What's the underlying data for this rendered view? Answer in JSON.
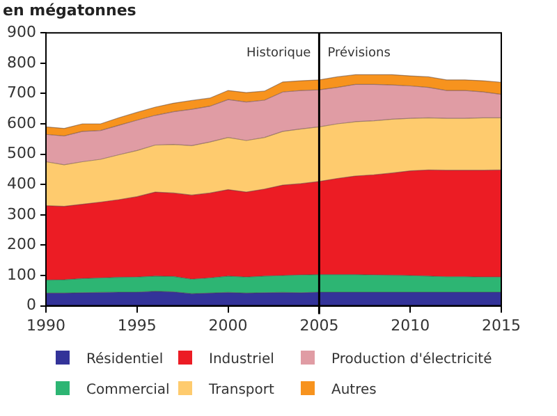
{
  "chart_data": {
    "type": "area",
    "stacked": true,
    "ylabel": "en mégatonnes",
    "x": [
      1990,
      1991,
      1992,
      1993,
      1994,
      1995,
      1996,
      1997,
      1998,
      1999,
      2000,
      2001,
      2002,
      2003,
      2004,
      2005,
      2006,
      2007,
      2008,
      2009,
      2010,
      2011,
      2012,
      2013,
      2014,
      2015
    ],
    "xlim": [
      1990,
      2015
    ],
    "xticks": [
      1990,
      1995,
      2000,
      2005,
      2010,
      2015
    ],
    "ylim": [
      0,
      900
    ],
    "yticks": [
      0,
      100,
      200,
      300,
      400,
      500,
      600,
      700,
      800,
      900
    ],
    "grid": false,
    "legend": "bottom",
    "ref_lines": [
      {
        "axis": "x",
        "value": 2005,
        "color": "#000000"
      }
    ],
    "annotations": [
      "Historique",
      "Prévisions"
    ],
    "series": [
      {
        "name": "Résidentiel",
        "color": "#333399",
        "values": [
          42,
          42,
          43,
          44,
          45,
          45,
          48,
          46,
          40,
          42,
          44,
          42,
          43,
          44,
          43,
          45,
          45,
          45,
          45,
          45,
          45,
          45,
          45,
          45,
          45,
          45
        ]
      },
      {
        "name": "Commercial",
        "color": "#2db573",
        "values": [
          43,
          44,
          47,
          48,
          49,
          50,
          50,
          51,
          48,
          50,
          54,
          53,
          55,
          56,
          59,
          58,
          58,
          58,
          57,
          56,
          55,
          53,
          51,
          51,
          50,
          50
        ]
      },
      {
        "name": "Industriel",
        "color": "#ec1c24",
        "values": [
          245,
          242,
          245,
          250,
          256,
          265,
          277,
          275,
          277,
          280,
          285,
          280,
          287,
          298,
          301,
          307,
          317,
          325,
          330,
          337,
          345,
          350,
          351,
          351,
          352,
          353
        ]
      },
      {
        "name": "Transport",
        "color": "#fecb6e",
        "values": [
          145,
          137,
          140,
          141,
          148,
          152,
          155,
          160,
          163,
          168,
          172,
          170,
          170,
          177,
          180,
          180,
          180,
          179,
          178,
          177,
          173,
          172,
          171,
          171,
          173,
          172
        ]
      },
      {
        "name": "Production d'électricité",
        "color": "#e09ca4",
        "values": [
          90,
          95,
          100,
          95,
          97,
          100,
          98,
          108,
          120,
          118,
          125,
          127,
          123,
          130,
          127,
          122,
          120,
          123,
          120,
          113,
          107,
          100,
          92,
          92,
          85,
          77
        ]
      },
      {
        "name": "Autres",
        "color": "#f7931e",
        "values": [
          25,
          25,
          25,
          22,
          25,
          26,
          27,
          28,
          29,
          27,
          30,
          31,
          30,
          33,
          32,
          33,
          35,
          32,
          32,
          34,
          33,
          35,
          35,
          35,
          37,
          40
        ]
      }
    ]
  }
}
